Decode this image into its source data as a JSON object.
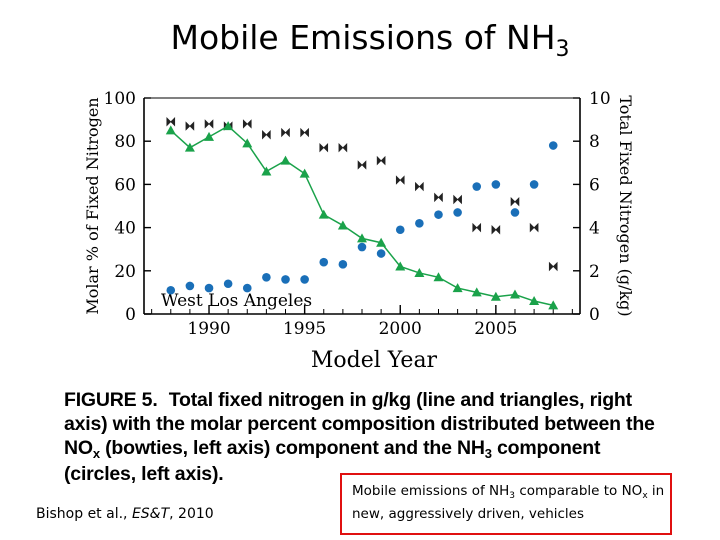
{
  "slide": {
    "title": "Mobile Emissions of NH",
    "title_sub": "3"
  },
  "caption": {
    "label": "FIGURE 5.",
    "part1": "Total fixed nitrogen in g/kg (line and triangles, right axis) with the molar percent composition distributed between the NO",
    "sub1": "x",
    "part2": " (bowties, left axis) component and the NH",
    "sub2": "3",
    "part3": " component (circles, left axis)."
  },
  "citation": {
    "authors": "Bishop et al., ",
    "journal": "ES&T",
    "year": ", 2010"
  },
  "note": {
    "part1": "Mobile emissions of NH",
    "sub1": "3",
    "part2": " comparable to NO",
    "sub2": "x",
    "part3": " in new, aggressively driven, vehicles"
  },
  "colors": {
    "green": "#1aa24a",
    "blue": "#1a6fb8",
    "bowtie": "#222222",
    "note_border": "#e01010"
  },
  "chart_data": {
    "type": "scatter",
    "title": "",
    "xlabel": "Model Year",
    "ylabel": "Molar % of Fixed Nitrogen",
    "y2label": "Total Fixed Nitrogen (g/kg)",
    "annotation": "West Los Angeles",
    "xlim": [
      1986.6,
      2009.4
    ],
    "ylim": [
      0,
      100
    ],
    "y2lim": [
      0,
      10
    ],
    "xticks": [
      1990,
      1995,
      2000,
      2005
    ],
    "yticks": [
      0,
      20,
      40,
      60,
      80,
      100
    ],
    "y2ticks": [
      0,
      2,
      4,
      6,
      8,
      10
    ],
    "series": [
      {
        "name": "NOx (bowties, left axis)",
        "axis": "left",
        "marker": "bowtie",
        "x": [
          1988,
          1989,
          1990,
          1991,
          1992,
          1993,
          1994,
          1995,
          1996,
          1997,
          1998,
          1999,
          2000,
          2001,
          2002,
          2003,
          2004,
          2005,
          2006,
          2007,
          2008
        ],
        "y": [
          89,
          87,
          88,
          87,
          88,
          83,
          84,
          84,
          77,
          77,
          69,
          71,
          62,
          59,
          54,
          53,
          40,
          39,
          52,
          40,
          22
        ]
      },
      {
        "name": "NH3 (circles, left axis)",
        "axis": "left",
        "marker": "circle",
        "x": [
          1988,
          1989,
          1990,
          1991,
          1992,
          1993,
          1994,
          1995,
          1996,
          1997,
          1998,
          1999,
          2000,
          2001,
          2002,
          2003,
          2004,
          2005,
          2006,
          2007,
          2008
        ],
        "y": [
          11,
          13,
          12,
          14,
          12,
          17,
          16,
          16,
          24,
          23,
          31,
          28,
          39,
          42,
          46,
          47,
          59,
          60,
          47,
          60,
          78
        ]
      },
      {
        "name": "Total fixed nitrogen (line and triangles, right axis)",
        "axis": "right",
        "marker": "triangle",
        "x": [
          1988,
          1989,
          1990,
          1991,
          1992,
          1993,
          1994,
          1995,
          1996,
          1997,
          1998,
          1999,
          2000,
          2001,
          2002,
          2003,
          2004,
          2005,
          2006,
          2007,
          2008
        ],
        "y": [
          8.5,
          7.7,
          8.2,
          8.7,
          7.9,
          6.6,
          7.1,
          6.5,
          4.6,
          4.1,
          3.5,
          3.3,
          2.2,
          1.9,
          1.7,
          1.2,
          1.0,
          0.8,
          0.9,
          0.6,
          0.4
        ]
      }
    ]
  }
}
